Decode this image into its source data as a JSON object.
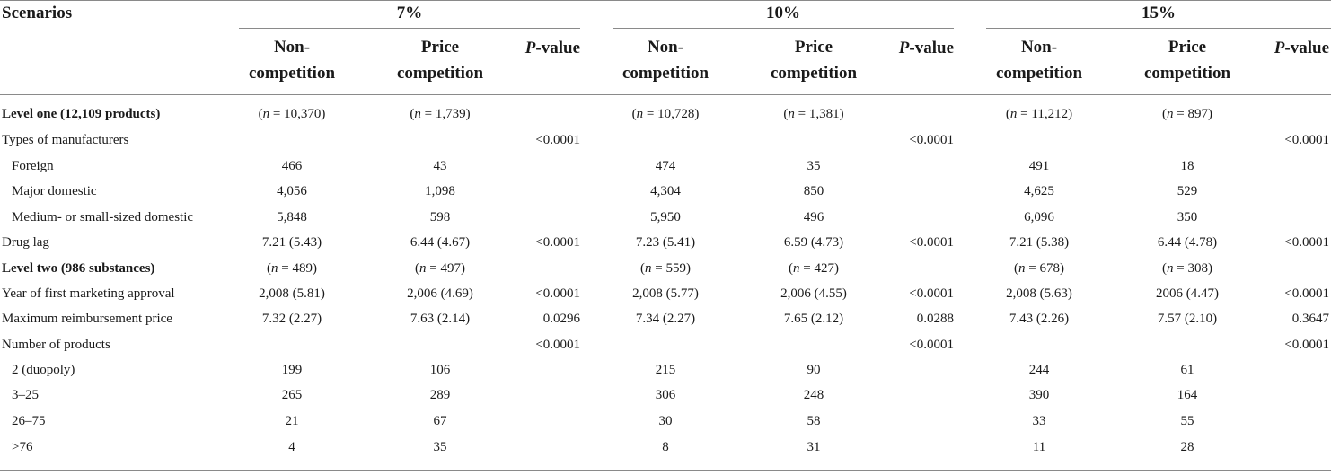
{
  "header": {
    "scenarios_label": "Scenarios",
    "groups": [
      {
        "label": "7%"
      },
      {
        "label": "10%"
      },
      {
        "label": "15%"
      }
    ],
    "col_non": "Non-competition",
    "col_non_line1": "Non-",
    "col_non_line2": "competition",
    "col_price_line1": "Price",
    "col_price_line2": "competition",
    "col_p_italic": "P",
    "col_p_rest": "-value"
  },
  "rows": [
    {
      "label": "Level one (12,109 products)",
      "bold": true,
      "indent": false,
      "cells": [
        "(n = 10,370)",
        "(n = 1,739)",
        "",
        "(n = 10,728)",
        "(n = 1,381)",
        "",
        "(n = 11,212)",
        "(n = 897)",
        ""
      ]
    },
    {
      "label": "Types of manufacturers",
      "bold": false,
      "indent": false,
      "cells": [
        "",
        "",
        "<0.0001",
        "",
        "",
        "<0.0001",
        "",
        "",
        "<0.0001"
      ]
    },
    {
      "label": "Foreign",
      "bold": false,
      "indent": true,
      "cells": [
        "466",
        "43",
        "",
        "474",
        "35",
        "",
        "491",
        "18",
        ""
      ]
    },
    {
      "label": "Major domestic",
      "bold": false,
      "indent": true,
      "cells": [
        "4,056",
        "1,098",
        "",
        "4,304",
        "850",
        "",
        "4,625",
        "529",
        ""
      ]
    },
    {
      "label": "Medium- or small-sized domestic",
      "bold": false,
      "indent": true,
      "cells": [
        "5,848",
        "598",
        "",
        "5,950",
        "496",
        "",
        "6,096",
        "350",
        ""
      ]
    },
    {
      "label": "Drug lag",
      "bold": false,
      "indent": false,
      "cells": [
        "7.21 (5.43)",
        "6.44 (4.67)",
        "<0.0001",
        "7.23 (5.41)",
        "6.59 (4.73)",
        "<0.0001",
        "7.21 (5.38)",
        "6.44 (4.78)",
        "<0.0001"
      ]
    },
    {
      "label": "Level two (986 substances)",
      "bold": true,
      "indent": false,
      "cells": [
        "(n = 489)",
        "(n = 497)",
        "",
        "(n = 559)",
        "(n = 427)",
        "",
        "(n = 678)",
        "(n = 308)",
        ""
      ]
    },
    {
      "label": "Year of first marketing approval",
      "bold": false,
      "indent": false,
      "cells": [
        "2,008 (5.81)",
        "2,006 (4.69)",
        "<0.0001",
        "2,008 (5.77)",
        "2,006 (4.55)",
        "<0.0001",
        "2,008 (5.63)",
        "2006 (4.47)",
        "<0.0001"
      ]
    },
    {
      "label": "Maximum reimbursement price",
      "bold": false,
      "indent": false,
      "cells": [
        "7.32 (2.27)",
        "7.63 (2.14)",
        "0.0296",
        "7.34 (2.27)",
        "7.65 (2.12)",
        "0.0288",
        "7.43 (2.26)",
        "7.57 (2.10)",
        "0.3647"
      ]
    },
    {
      "label": "Number of products",
      "bold": false,
      "indent": false,
      "cells": [
        "",
        "",
        "<0.0001",
        "",
        "",
        "<0.0001",
        "",
        "",
        "<0.0001"
      ]
    },
    {
      "label": "2 (duopoly)",
      "bold": false,
      "indent": true,
      "cells": [
        "199",
        "106",
        "",
        "215",
        "90",
        "",
        "244",
        "61",
        ""
      ]
    },
    {
      "label": "3–25",
      "bold": false,
      "indent": true,
      "cells": [
        "265",
        "289",
        "",
        "306",
        "248",
        "",
        "390",
        "164",
        ""
      ]
    },
    {
      "label": "26–75",
      "bold": false,
      "indent": true,
      "cells": [
        "21",
        "67",
        "",
        "30",
        "58",
        "",
        "33",
        "55",
        ""
      ]
    },
    {
      "label": ">76",
      "bold": false,
      "indent": true,
      "cells": [
        "4",
        "35",
        "",
        "8",
        "31",
        "",
        "11",
        "28",
        ""
      ]
    }
  ]
}
